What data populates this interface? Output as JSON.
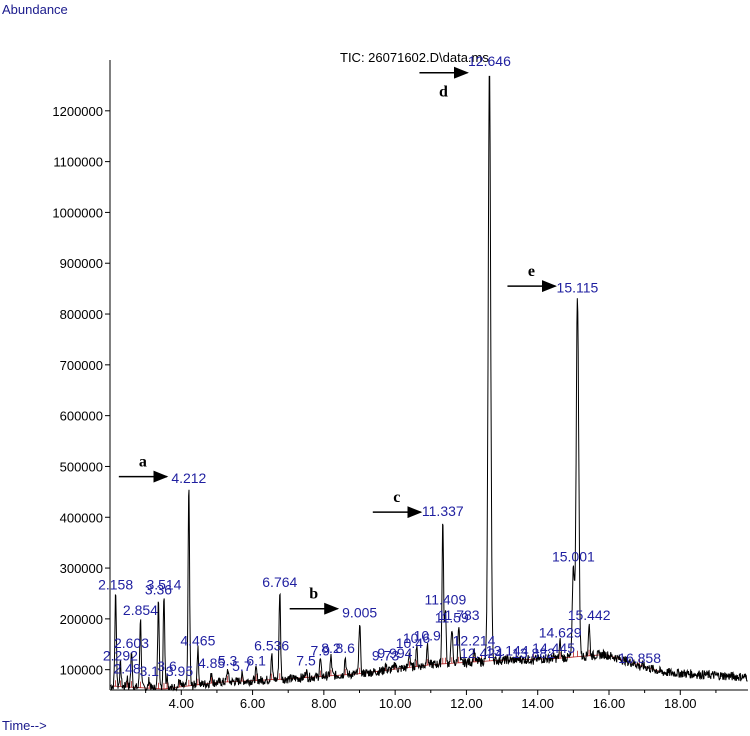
{
  "chart_data": {
    "type": "line",
    "title": "TIC: 26071602.D\\data.ms",
    "ylabel": "Abundance",
    "xlabel": "Time-->",
    "xlim": [
      2.0,
      19.9
    ],
    "ylim": [
      60000,
      1300000
    ],
    "x_ticks": [
      4,
      6,
      8,
      10,
      12,
      14,
      16,
      18
    ],
    "x_tick_labels": [
      "4.00",
      "6.00",
      "8.00",
      "10.00",
      "12.00",
      "14.00",
      "16.00",
      "18.00"
    ],
    "y_ticks": [
      100000,
      200000,
      300000,
      400000,
      500000,
      600000,
      700000,
      800000,
      900000,
      1000000,
      1100000,
      1200000
    ],
    "y_tick_labels": [
      "100000",
      "200000",
      "300000",
      "400000",
      "500000",
      "600000",
      "700000",
      "800000",
      "900000",
      "1000000",
      "1100000",
      "1200000"
    ],
    "series": [
      {
        "name": "TIC",
        "peaks": [
          {
            "rt": 2.158,
            "label": "2.158",
            "height": 250000
          },
          {
            "rt": 2.292,
            "label": "2.292",
            "height": 110000
          },
          {
            "rt": 2.48,
            "label": "2.48",
            "height": 85000
          },
          {
            "rt": 2.603,
            "label": "2.603",
            "height": 135000
          },
          {
            "rt": 2.854,
            "label": "2.854",
            "height": 200000
          },
          {
            "rt": 3.1,
            "label": "3.1",
            "height": 80000
          },
          {
            "rt": 3.36,
            "label": "3.36",
            "height": 240000
          },
          {
            "rt": 3.514,
            "label": "3.514",
            "height": 250000
          },
          {
            "rt": 3.6,
            "label": "3.6",
            "height": 90000
          },
          {
            "rt": 3.95,
            "label": "3.95",
            "height": 80000
          },
          {
            "rt": 4.212,
            "label": "4.212",
            "height": 460000
          },
          {
            "rt": 4.465,
            "label": "4.465",
            "height": 140000
          },
          {
            "rt": 4.85,
            "label": "4.85",
            "height": 95000
          },
          {
            "rt": 5.3,
            "label": "5.3",
            "height": 100000
          },
          {
            "rt": 5.7,
            "label": "5.7",
            "height": 90000
          },
          {
            "rt": 6.1,
            "label": "6.1",
            "height": 100000
          },
          {
            "rt": 6.536,
            "label": "6.536",
            "height": 130000
          },
          {
            "rt": 6.764,
            "label": "6.764",
            "height": 255000
          },
          {
            "rt": 7.5,
            "label": "7.5",
            "height": 100000
          },
          {
            "rt": 7.9,
            "label": "7.9",
            "height": 120000
          },
          {
            "rt": 8.2,
            "label": "8.2",
            "height": 125000
          },
          {
            "rt": 8.6,
            "label": "8.6",
            "height": 125000
          },
          {
            "rt": 9.005,
            "label": "9.005",
            "height": 195000
          },
          {
            "rt": 9.73,
            "label": "9.73",
            "height": 110000
          },
          {
            "rt": 9.994,
            "label": "9.994",
            "height": 115000
          },
          {
            "rt": 10.4,
            "label": "10.4",
            "height": 135000
          },
          {
            "rt": 10.6,
            "label": "10.6",
            "height": 145000
          },
          {
            "rt": 10.9,
            "label": "10.9",
            "height": 150000
          },
          {
            "rt": 11.337,
            "label": "11.337",
            "height": 395000
          },
          {
            "rt": 11.409,
            "label": "11.409",
            "height": 220000
          },
          {
            "rt": 11.59,
            "label": "11.59",
            "height": 185000
          },
          {
            "rt": 11.783,
            "label": "11.783",
            "height": 190000
          },
          {
            "rt": 12.214,
            "label": "12.214",
            "height": 140000
          },
          {
            "rt": 12.424,
            "label": "12.424",
            "height": 115000
          },
          {
            "rt": 12.646,
            "label": "12.646",
            "height": 1280000
          },
          {
            "rt": 13.144,
            "label": "13.144",
            "height": 120000
          },
          {
            "rt": 13.882,
            "label": "13.882",
            "height": 115000
          },
          {
            "rt": 14.445,
            "label": "14.445",
            "height": 125000
          },
          {
            "rt": 14.629,
            "label": "14.629",
            "height": 155000
          },
          {
            "rt": 15.001,
            "label": "15.001",
            "height": 305000
          },
          {
            "rt": 15.115,
            "label": "15.115",
            "height": 835000
          },
          {
            "rt": 15.442,
            "label": "15.442",
            "height": 190000
          },
          {
            "rt": 16.858,
            "label": "16.858",
            "height": 105000
          }
        ]
      }
    ],
    "annotations": [
      {
        "letter": "a",
        "peak": "4.212",
        "y": 480000
      },
      {
        "letter": "b",
        "peak": "9.005",
        "y": 220000
      },
      {
        "letter": "c",
        "peak": "11.337",
        "y": 410000
      },
      {
        "letter": "d",
        "peak": "12.646",
        "y": 1275000
      },
      {
        "letter": "e",
        "peak": "15.115",
        "y": 855000
      }
    ],
    "colors": {
      "trace": "#000000",
      "baseline": "#b22222",
      "peak_label": "#1f1fa0",
      "axis_title": "#1a1a8c"
    }
  }
}
